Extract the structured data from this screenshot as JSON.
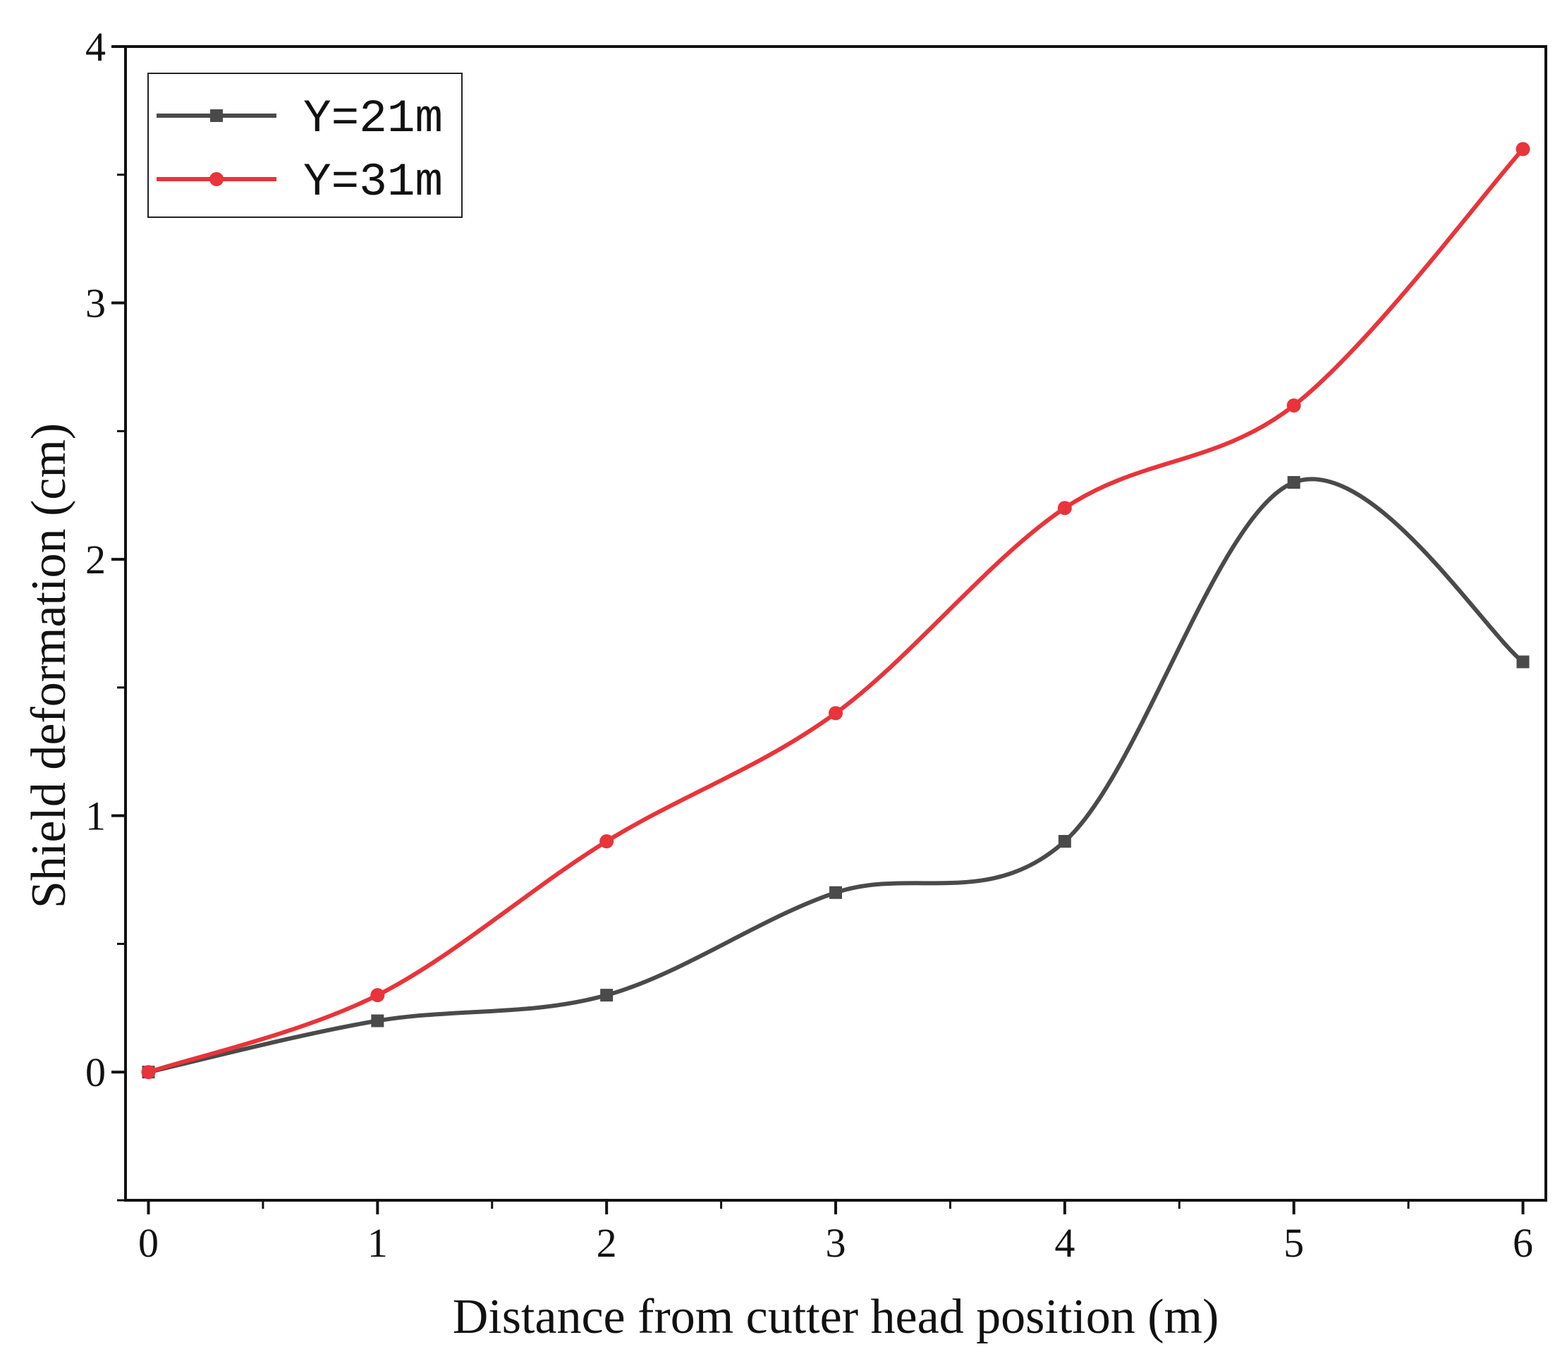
{
  "chart_data": {
    "type": "line",
    "xlabel": "Distance from cutter head position (m)",
    "ylabel": "Shield deformation (cm)",
    "xlim": [
      -0.1,
      6.1
    ],
    "ylim": [
      -0.5,
      4
    ],
    "xticks": [
      "0",
      "1",
      "2",
      "3",
      "4",
      "5",
      "6"
    ],
    "yticks": [
      "0",
      "1",
      "2",
      "3",
      "4"
    ],
    "legend_position": "top-left",
    "x": [
      0,
      1,
      2,
      3,
      4,
      5,
      6
    ],
    "series": [
      {
        "name": "Y=21m",
        "marker": "square",
        "color": "#4a4a4a",
        "values": [
          0,
          0.2,
          0.3,
          0.7,
          0.9,
          2.3,
          1.6
        ]
      },
      {
        "name": "Y=31m",
        "marker": "circle",
        "color": "#e8343a",
        "values": [
          0,
          0.3,
          0.9,
          1.4,
          2.2,
          2.6,
          3.6
        ]
      }
    ]
  }
}
